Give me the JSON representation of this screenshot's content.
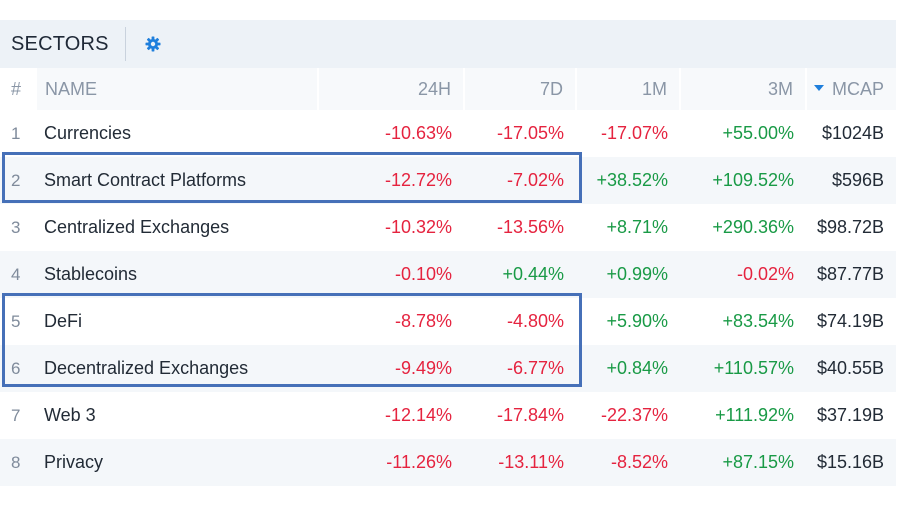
{
  "panel": {
    "title": "SECTORS",
    "settings_icon": "gear-icon",
    "accent_color": "#1f7fdc"
  },
  "columns": {
    "rank": "#",
    "name": "NAME",
    "h24": "24H",
    "d7": "7D",
    "m1": "1M",
    "m3": "3M",
    "mcap": "MCAP"
  },
  "sort": {
    "column": "mcap",
    "direction": "desc"
  },
  "rows": [
    {
      "rank": "1",
      "name": "Currencies",
      "h24": "-10.63%",
      "d7": "-17.05%",
      "m1": "-17.07%",
      "m3": "+55.00%",
      "mcap": "$1024B"
    },
    {
      "rank": "2",
      "name": "Smart Contract Platforms",
      "h24": "-12.72%",
      "d7": "-7.02%",
      "m1": "+38.52%",
      "m3": "+109.52%",
      "mcap": "$596B"
    },
    {
      "rank": "3",
      "name": "Centralized Exchanges",
      "h24": "-10.32%",
      "d7": "-13.56%",
      "m1": "+8.71%",
      "m3": "+290.36%",
      "mcap": "$98.72B"
    },
    {
      "rank": "4",
      "name": "Stablecoins",
      "h24": "-0.10%",
      "d7": "+0.44%",
      "m1": "+0.99%",
      "m3": "-0.02%",
      "mcap": "$87.77B"
    },
    {
      "rank": "5",
      "name": "DeFi",
      "h24": "-8.78%",
      "d7": "-4.80%",
      "m1": "+5.90%",
      "m3": "+83.54%",
      "mcap": "$74.19B"
    },
    {
      "rank": "6",
      "name": "Decentralized Exchanges",
      "h24": "-9.49%",
      "d7": "-6.77%",
      "m1": "+0.84%",
      "m3": "+110.57%",
      "mcap": "$40.55B"
    },
    {
      "rank": "7",
      "name": "Web 3",
      "h24": "-12.14%",
      "d7": "-17.84%",
      "m1": "-22.37%",
      "m3": "+111.92%",
      "mcap": "$37.19B"
    },
    {
      "rank": "8",
      "name": "Privacy",
      "h24": "-11.26%",
      "d7": "-13.11%",
      "m1": "-8.52%",
      "m3": "+87.15%",
      "mcap": "$15.16B"
    }
  ],
  "colors": {
    "negative": "#e5233f",
    "positive": "#199a46",
    "highlight_box": "#4670b8"
  }
}
